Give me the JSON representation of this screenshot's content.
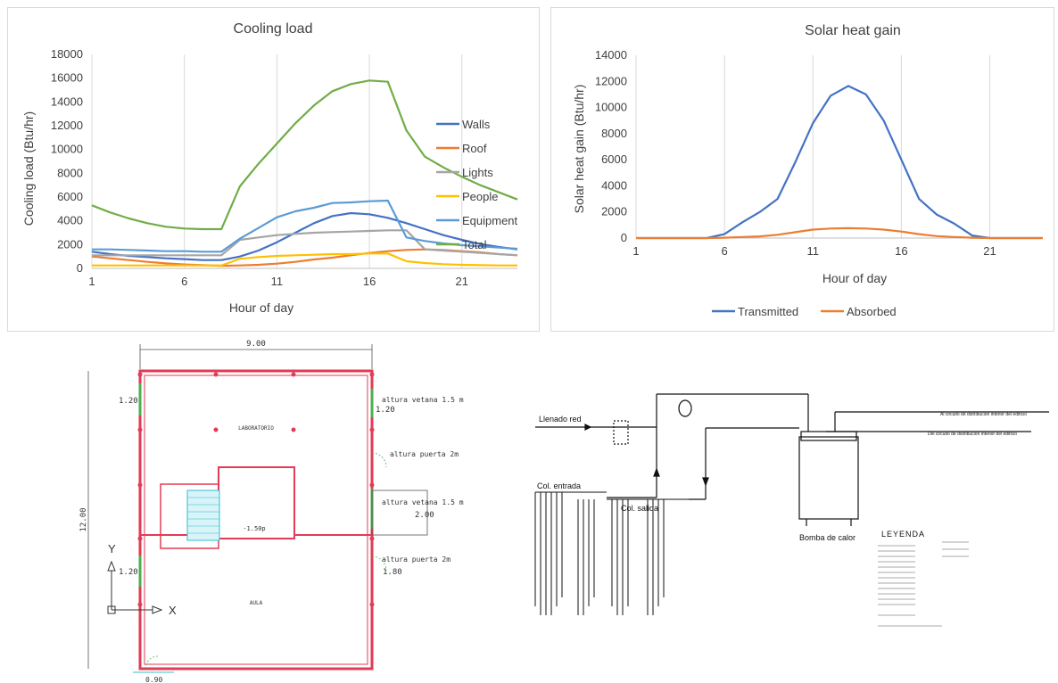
{
  "chart_data": [
    {
      "type": "line",
      "title": "Cooling load",
      "xlabel": "Hour of day",
      "ylabel": "Cooling load (Btu/hr)",
      "xlim": [
        1,
        24
      ],
      "ylim": [
        0,
        18000
      ],
      "xticks": [
        1,
        6,
        11,
        16,
        21
      ],
      "yticks": [
        0,
        2000,
        4000,
        6000,
        8000,
        10000,
        12000,
        14000,
        16000,
        18000
      ],
      "grid": "vertical",
      "legend": "right",
      "x": [
        1,
        2,
        3,
        4,
        5,
        6,
        7,
        8,
        9,
        10,
        11,
        12,
        13,
        14,
        15,
        16,
        17,
        18,
        19,
        20,
        21,
        22,
        23,
        24
      ],
      "series": [
        {
          "name": "Walls",
          "color": "#4472C4",
          "values": [
            1400,
            1200,
            1050,
            950,
            850,
            780,
            700,
            700,
            1000,
            1500,
            2200,
            3000,
            3800,
            4400,
            4650,
            4550,
            4250,
            3800,
            3300,
            2800,
            2400,
            2050,
            1800,
            1600
          ]
        },
        {
          "name": "Roof",
          "color": "#ED7D31",
          "values": [
            1000,
            850,
            700,
            550,
            420,
            330,
            270,
            220,
            250,
            300,
            400,
            550,
            750,
            900,
            1100,
            1300,
            1450,
            1550,
            1600,
            1550,
            1450,
            1350,
            1200,
            1100
          ]
        },
        {
          "name": "Lights",
          "color": "#A5A5A5",
          "values": [
            1100,
            1100,
            1100,
            1100,
            1100,
            1100,
            1100,
            1100,
            2400,
            2600,
            2800,
            2900,
            3000,
            3050,
            3100,
            3150,
            3200,
            3200,
            1600,
            1500,
            1400,
            1300,
            1200,
            1100
          ]
        },
        {
          "name": "People",
          "color": "#FFC000",
          "values": [
            250,
            250,
            250,
            250,
            250,
            250,
            250,
            250,
            800,
            950,
            1050,
            1100,
            1150,
            1200,
            1200,
            1250,
            1250,
            600,
            450,
            350,
            300,
            270,
            250,
            250
          ]
        },
        {
          "name": "Equipment",
          "color": "#5B9BD5",
          "values": [
            1600,
            1600,
            1550,
            1500,
            1450,
            1450,
            1400,
            1400,
            2500,
            3400,
            4300,
            4800,
            5100,
            5500,
            5550,
            5650,
            5700,
            2600,
            2300,
            2100,
            1950,
            1850,
            1750,
            1650
          ]
        },
        {
          "name": "Total",
          "color": "#70AD47",
          "values": [
            5300,
            4700,
            4200,
            3800,
            3500,
            3350,
            3300,
            3300,
            6900,
            8800,
            10500,
            12200,
            13700,
            14900,
            15500,
            15800,
            15700,
            11600,
            9400,
            8500,
            7700,
            7000,
            6400,
            5800
          ]
        }
      ]
    },
    {
      "type": "line",
      "title": "Solar heat gain",
      "xlabel": "Hour of day",
      "ylabel": "Solar heat gain (Btu/hr)",
      "xlim": [
        1,
        24
      ],
      "ylim": [
        0,
        14000
      ],
      "xticks": [
        1,
        6,
        11,
        16,
        21
      ],
      "yticks": [
        0,
        2000,
        4000,
        6000,
        8000,
        10000,
        12000,
        14000
      ],
      "grid": "vertical",
      "legend": "bottom",
      "x": [
        1,
        2,
        3,
        4,
        5,
        6,
        7,
        8,
        9,
        10,
        11,
        12,
        13,
        14,
        15,
        16,
        17,
        18,
        19,
        20,
        21,
        22,
        23,
        24
      ],
      "series": [
        {
          "name": "Transmitted",
          "color": "#4472C4",
          "values": [
            0,
            0,
            0,
            0,
            0,
            300,
            1200,
            2000,
            3000,
            5800,
            8800,
            10900,
            11650,
            11000,
            9000,
            6000,
            3000,
            1800,
            1100,
            200,
            0,
            0,
            0,
            0
          ]
        },
        {
          "name": "Absorbed",
          "color": "#ED7D31",
          "values": [
            0,
            0,
            0,
            0,
            0,
            30,
            80,
            130,
            250,
            450,
            650,
            730,
            760,
            730,
            650,
            500,
            300,
            150,
            80,
            30,
            0,
            0,
            0,
            0
          ]
        }
      ]
    }
  ],
  "floorplan": {
    "dim_width": "9.00",
    "dim_height": "12.00",
    "dim_window_1": "1.20",
    "dim_window_2": "1.20",
    "dim_door_right": "1.20",
    "dim_window_right": "2.00",
    "dim_door_right_2": "1.80",
    "dim_bottom": "0.90",
    "room_top": "LABORATORIO",
    "room_bottom": "AULA",
    "level": "-1.50p",
    "note_1": "altura vetana 1.5 m",
    "note_2": "altura puerta 2m",
    "note_3": "altura vetana 1.5 m",
    "note_4": "altura puerta 2m",
    "axis_y": "Y",
    "axis_x": "X"
  },
  "hydraulic": {
    "fill_label": "Llenado red",
    "inlet_label": "Col. entrada",
    "outlet_label": "Col. salida",
    "heatpump_label": "Bomba de calor",
    "to_circuit": "Al circuito de distribución interior del edificio",
    "from_circuit": "Del circuito de distribución interior del edificio",
    "legend_title": "LEYENDA"
  }
}
